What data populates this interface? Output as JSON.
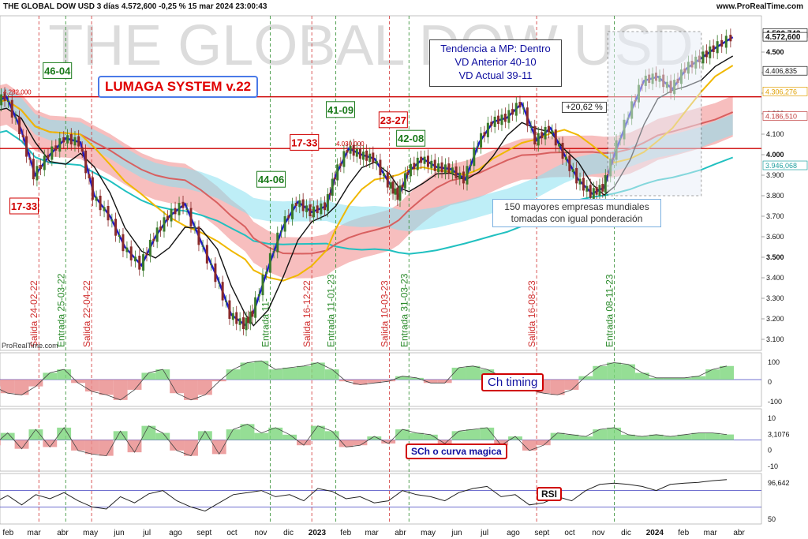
{
  "header": {
    "left": "THE GLOBAL DOW USD 3 días 4.572,600 -0,25 % 15 mar 2024 23:00:43",
    "right": "www.ProRealTime.com"
  },
  "watermark": "THE GLOBAL DOW USD",
  "credit": "ProRealTime.com",
  "title_box": "LUMAGA SYSTEM v.22",
  "info_box": [
    "Tendencia a MP: Dentro",
    "VD Anterior 40-10",
    "VD Actual 39-11"
  ],
  "note": [
    "150 mayores empresas mundiales",
    "tomadas con igual ponderación"
  ],
  "pct_change": "+20,62 %",
  "indicator_labels": {
    "timing": "Ch timing",
    "sch": "SCh o curva magica",
    "rsi": "RSI"
  },
  "colors": {
    "price_up": "#3a7a2a",
    "price_down": "#8a2a2a",
    "fast_line": "#1a1acc",
    "ma_yellow": "#f0b800",
    "ma_red": "#d86060",
    "ma_cyan": "#20c0c0",
    "black_line": "#111111",
    "cloud_red": "#f08888",
    "cloud_cyan": "#88e0f0",
    "level": "#cc0000"
  },
  "chart_data": [
    {
      "type": "line",
      "name": "price",
      "x": [
        "2022-01-05",
        "2022-01-20",
        "2022-02-05",
        "2022-02-20",
        "2022-03-08",
        "2022-03-25",
        "2022-04-10",
        "2022-04-25",
        "2022-05-12",
        "2022-05-28",
        "2022-06-15",
        "2022-06-30",
        "2022-07-15",
        "2022-08-01",
        "2022-08-18",
        "2022-09-05",
        "2022-09-20",
        "2022-10-05",
        "2022-10-14",
        "2022-10-30",
        "2022-11-15",
        "2022-12-01",
        "2022-12-16",
        "2023-01-01",
        "2023-01-11",
        "2023-01-25",
        "2023-02-08",
        "2023-02-22",
        "2023-03-10",
        "2023-03-20",
        "2023-03-31",
        "2023-04-15",
        "2023-04-30",
        "2023-05-15",
        "2023-05-31",
        "2023-06-15",
        "2023-06-30",
        "2023-07-15",
        "2023-07-31",
        "2023-08-16",
        "2023-08-31",
        "2023-09-15",
        "2023-09-30",
        "2023-10-15",
        "2023-10-28",
        "2023-11-08",
        "2023-11-25",
        "2023-12-10",
        "2023-12-25",
        "2024-01-10",
        "2024-01-25",
        "2024-02-10",
        "2024-02-25",
        "2024-03-15"
      ],
      "values": [
        4250,
        4282,
        4120,
        3900,
        4000,
        4080,
        4060,
        3800,
        3700,
        3550,
        3460,
        3600,
        3700,
        3760,
        3580,
        3400,
        3220,
        3170,
        3230,
        3450,
        3650,
        3770,
        3720,
        3750,
        3900,
        4030,
        4000,
        3980,
        3860,
        3800,
        3920,
        3980,
        3940,
        3930,
        3880,
        4060,
        4160,
        4180,
        4250,
        4070,
        4130,
        4000,
        3880,
        3810,
        3840,
        4000,
        4200,
        4360,
        4380,
        4320,
        4420,
        4470,
        4520,
        4572.6
      ],
      "ylim": [
        3100,
        4600
      ],
      "yticks": [
        3100,
        3200,
        3300,
        3400,
        3500,
        3600,
        3700,
        3800,
        3900,
        4000,
        4100,
        4200,
        4300,
        4400,
        4500
      ],
      "tick_labels": [
        "3.100",
        "3.200",
        "3.300",
        "3.400",
        "3.500",
        "3.600",
        "3.700",
        "3.800",
        "3.900",
        "4.000",
        "4.100",
        "4.200",
        "4.300",
        "4.400",
        "4.500"
      ],
      "xlabels": [
        "feb",
        "mar",
        "abr",
        "may",
        "jun",
        "jul",
        "ago",
        "sept",
        "oct",
        "nov",
        "dic",
        "2023",
        "feb",
        "mar",
        "abr",
        "may",
        "jun",
        "jul",
        "ago",
        "sept",
        "oct",
        "nov",
        "dic",
        "2024",
        "feb",
        "mar",
        "abr"
      ],
      "right_labels": [
        {
          "value": 4590.743,
          "text": "4.590,743",
          "color": "#111111"
        },
        {
          "value": 4572.6,
          "text": "4.572,600",
          "color": "#111111"
        },
        {
          "value": 4406.835,
          "text": "4.406,835",
          "color": "#111111"
        },
        {
          "value": 4306.276,
          "text": "4.306,276",
          "color": "#e0a000"
        },
        {
          "value": 4186.51,
          "text": "4.186,510",
          "color": "#c04040"
        },
        {
          "value": 3946.068,
          "text": "3.946,068",
          "color": "#20a0a0"
        }
      ],
      "levels": [
        {
          "value": 4282,
          "text": "4.282,000"
        },
        {
          "value": 4030,
          "text": "4.030,000"
        }
      ],
      "signals": [
        {
          "date": "2022-02-24",
          "label": "Salida 24-02-22",
          "kind": "salida"
        },
        {
          "date": "2022-03-25",
          "label": "Entrada 25-03-22",
          "kind": "entrada"
        },
        {
          "date": "2022-04-22",
          "label": "Salida 22-04-22",
          "kind": "salida"
        },
        {
          "date": "2022-11-01",
          "label": "Entrada 11-",
          "kind": "entrada"
        },
        {
          "date": "2022-12-16",
          "label": "Salida 16-12-22",
          "kind": "salida"
        },
        {
          "date": "2023-01-11",
          "label": "Entrada 11-01-23",
          "kind": "entrada"
        },
        {
          "date": "2023-03-10",
          "label": "Salida 10-03-23",
          "kind": "salida"
        },
        {
          "date": "2023-03-31",
          "label": "Entrada 31-03-23",
          "kind": "entrada"
        },
        {
          "date": "2023-08-16",
          "label": "Salida 16-08-23",
          "kind": "salida"
        },
        {
          "date": "2023-11-08",
          "label": "Entrada 08-11-23",
          "kind": "entrada"
        }
      ],
      "boxes": [
        {
          "date": "2022-02-08",
          "text": "17-33",
          "kind": "salida",
          "value": 3750
        },
        {
          "date": "2022-03-16",
          "text": "46-04",
          "kind": "entrada",
          "value": 4410
        },
        {
          "date": "2022-11-02",
          "text": "44-06",
          "kind": "entrada",
          "value": 3880
        },
        {
          "date": "2022-12-08",
          "text": "17-33",
          "kind": "salida",
          "value": 4060
        },
        {
          "date": "2023-01-16",
          "text": "41-09",
          "kind": "entrada",
          "value": 4220
        },
        {
          "date": "2023-03-14",
          "text": "23-27",
          "kind": "salida",
          "value": 4170
        },
        {
          "date": "2023-04-02",
          "text": "42-08",
          "kind": "entrada",
          "value": 4080
        }
      ]
    },
    {
      "type": "area",
      "name": "Ch timing",
      "values": [
        20,
        -40,
        -80,
        -90,
        -40,
        40,
        60,
        -20,
        -70,
        -90,
        -120,
        -60,
        40,
        60,
        -80,
        -120,
        -90,
        -10,
        60,
        100,
        110,
        60,
        70,
        80,
        100,
        60,
        -10,
        -30,
        -20,
        -10,
        20,
        10,
        -20,
        -20,
        70,
        80,
        60,
        20,
        -30,
        -60,
        -80,
        -90,
        -60,
        20,
        80,
        100,
        90,
        40,
        10,
        10,
        10,
        20,
        60,
        80
      ],
      "ylim": [
        -130,
        130
      ],
      "tick_labels": [
        "100",
        "0",
        "-100"
      ]
    },
    {
      "type": "area",
      "name": "SCh o curva magica",
      "values": [
        2,
        -3,
        4,
        -5,
        6,
        -4,
        7,
        -6,
        -8,
        -9,
        5,
        -7,
        8,
        4,
        -6,
        -9,
        5,
        -8,
        6,
        9,
        4,
        7,
        3,
        -3,
        8,
        5,
        -4,
        -3,
        2,
        -2,
        6,
        4,
        3,
        -2,
        5,
        6,
        7,
        -3,
        2,
        -6,
        -3,
        4,
        3,
        2,
        6,
        7,
        3,
        2,
        3,
        2,
        3,
        4,
        4,
        3.1076
      ],
      "ylim": [
        -15,
        15
      ],
      "tick_labels": [
        "10",
        "3,1076",
        "0",
        "-10"
      ]
    },
    {
      "type": "line",
      "name": "RSI",
      "values": [
        55,
        40,
        58,
        35,
        60,
        50,
        65,
        45,
        30,
        25,
        55,
        40,
        62,
        70,
        45,
        30,
        20,
        40,
        60,
        65,
        70,
        55,
        60,
        45,
        75,
        68,
        50,
        55,
        40,
        45,
        70,
        60,
        55,
        45,
        65,
        75,
        80,
        55,
        60,
        35,
        40,
        55,
        45,
        70,
        85,
        88,
        85,
        80,
        70,
        85,
        88,
        90,
        94,
        96.642
      ],
      "ylim": [
        0,
        100
      ],
      "lines": [
        30,
        70
      ],
      "tick_labels": [
        "96,642",
        "50"
      ]
    }
  ]
}
